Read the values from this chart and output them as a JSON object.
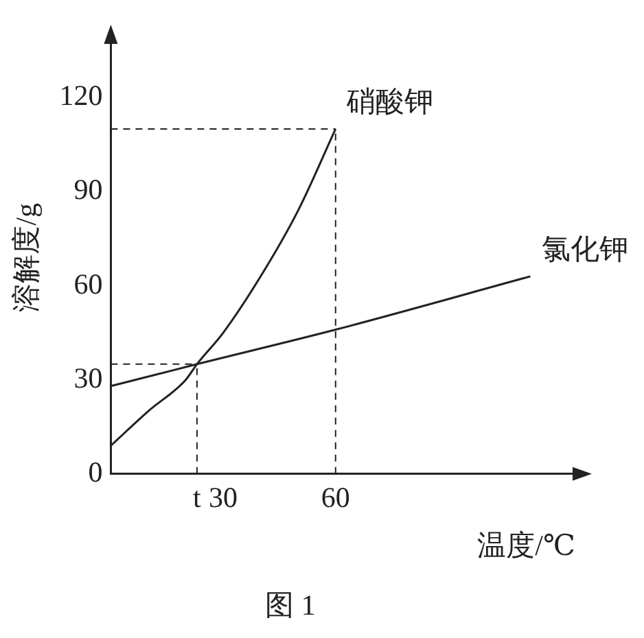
{
  "chart_data": {
    "type": "line",
    "title": "图 1",
    "xlabel": "温度/℃",
    "ylabel": "溶解度/g",
    "xlim": [
      0,
      124
    ],
    "ylim": [
      0,
      138
    ],
    "xticks": [
      {
        "value": 23,
        "label": "t"
      },
      30,
      60
    ],
    "yticks": [
      0,
      30,
      60,
      90,
      120
    ],
    "series": [
      {
        "name": "硝酸钾",
        "color": "#222222",
        "x": [
          0,
          10,
          20,
          23,
          30,
          40,
          50,
          60
        ],
        "values": [
          9,
          20,
          30,
          35,
          45,
          63,
          84,
          110
        ]
      },
      {
        "name": "氯化钾",
        "color": "#222222",
        "x": [
          0,
          23,
          60,
          112
        ],
        "values": [
          28,
          35,
          46,
          63
        ]
      }
    ],
    "ref_lines": [
      {
        "axis": "x",
        "value": 23,
        "line_style": "dashed"
      },
      {
        "axis": "y",
        "value": 35,
        "line_style": "dashed"
      },
      {
        "axis": "x",
        "value": 60,
        "line_style": "dashed"
      },
      {
        "axis": "y",
        "value": 110,
        "line_style": "dashed"
      }
    ],
    "grid": false,
    "legend": false,
    "marker": "none",
    "line_style": "solid"
  }
}
